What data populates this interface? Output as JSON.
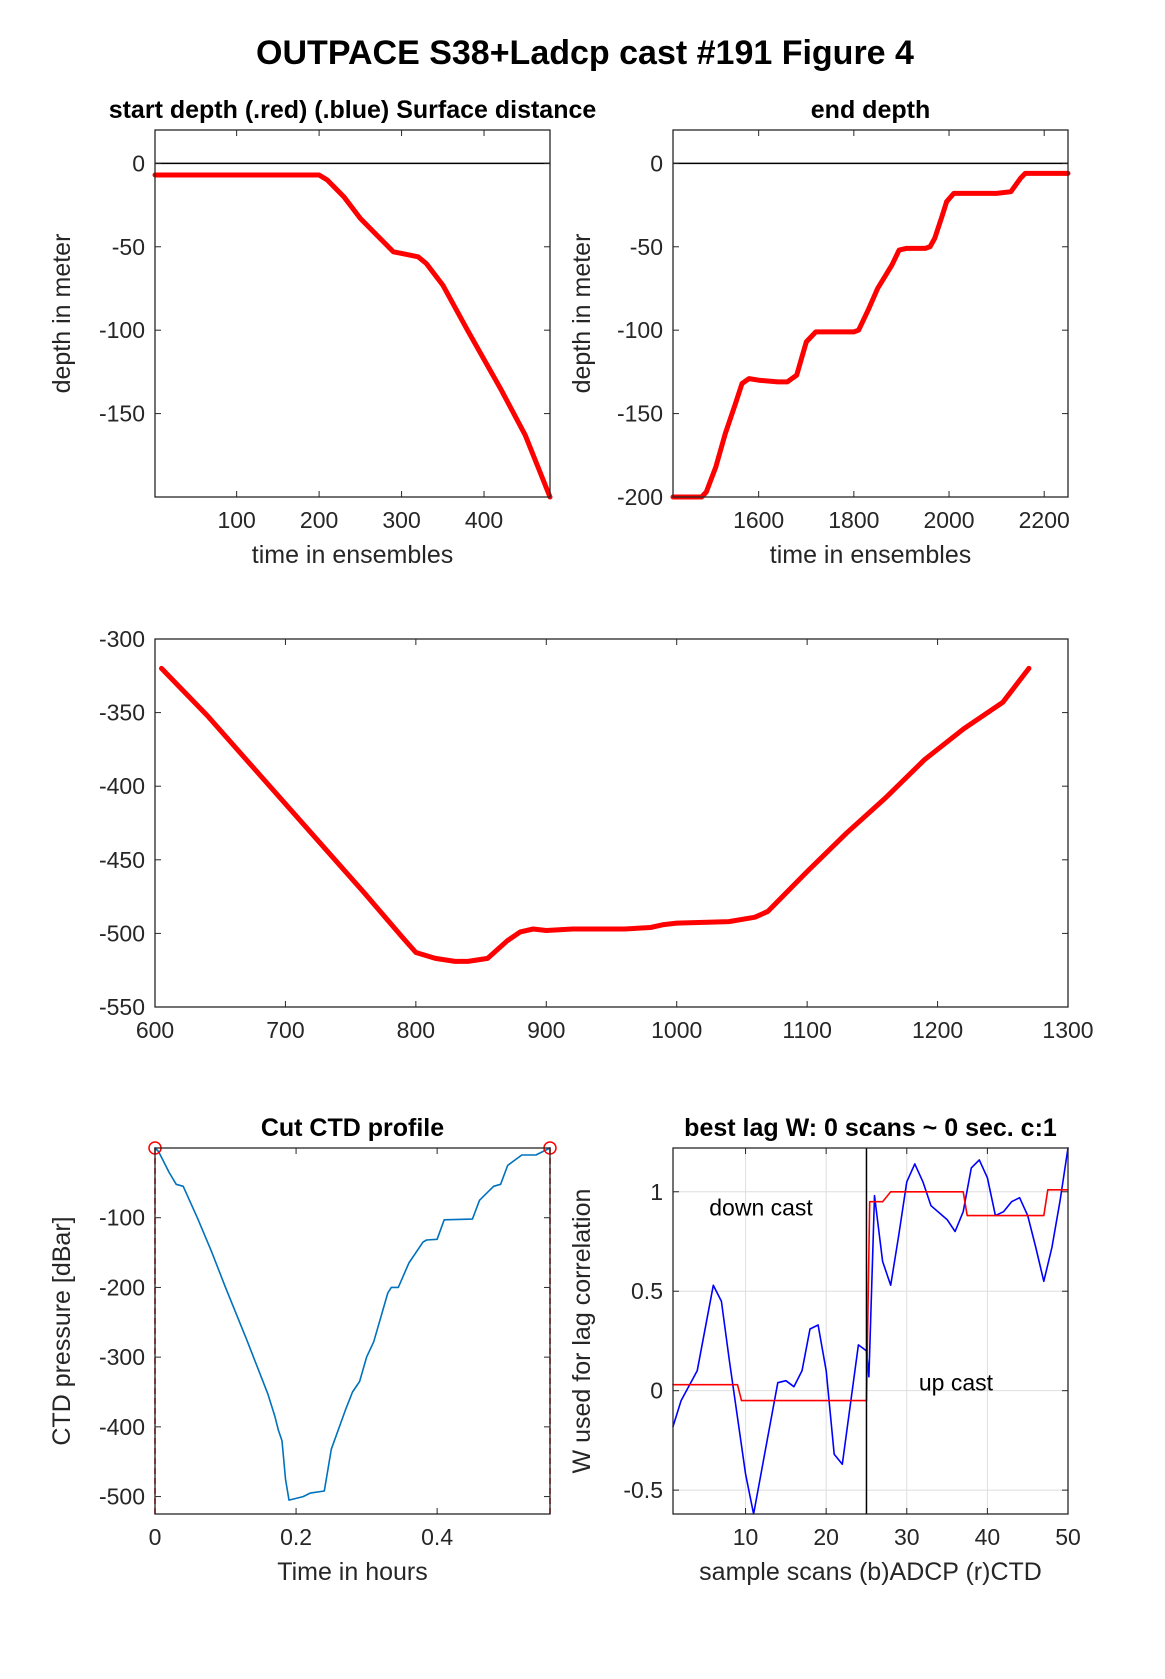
{
  "figure_title": "OUTPACE S38+Ladcp cast #191    Figure 4",
  "chart_data": [
    {
      "id": "start",
      "type": "line",
      "title": "start depth (.red) (.blue) Surface distance",
      "xlabel": "time in ensembles",
      "ylabel": "depth in meter",
      "xlim": [
        1,
        480
      ],
      "ylim": [
        -200,
        20
      ],
      "xticks": [
        100,
        200,
        300,
        400
      ],
      "yticks": [
        0,
        -50,
        -100,
        -150
      ],
      "grid": false,
      "reference_line": 0,
      "series": [
        {
          "color": "#ff0000",
          "x": [
            1,
            50,
            100,
            150,
            200,
            210,
            230,
            250,
            270,
            290,
            300,
            320,
            330,
            350,
            380,
            420,
            450,
            480
          ],
          "y": [
            -7,
            -7,
            -7,
            -7,
            -7,
            -10,
            -20,
            -33,
            -43,
            -53,
            -54,
            -56,
            -60,
            -73,
            -100,
            -135,
            -163,
            -200
          ]
        }
      ]
    },
    {
      "id": "end",
      "type": "line",
      "title": "end depth",
      "xlabel": "time in ensembles",
      "ylabel": "depth in meter",
      "xlim": [
        1420,
        2250
      ],
      "ylim": [
        -200,
        20
      ],
      "xticks": [
        1600,
        1800,
        2000,
        2200
      ],
      "yticks": [
        0,
        -50,
        -100,
        -150,
        -200
      ],
      "grid": false,
      "reference_line": 0,
      "series": [
        {
          "color": "#ff0000",
          "x": [
            1420,
            1480,
            1490,
            1510,
            1530,
            1550,
            1565,
            1580,
            1600,
            1640,
            1660,
            1680,
            1690,
            1700,
            1720,
            1800,
            1810,
            1830,
            1850,
            1880,
            1895,
            1910,
            1950,
            1960,
            1970,
            1985,
            1995,
            2010,
            2060,
            2100,
            2130,
            2150,
            2160,
            2200,
            2250
          ],
          "y": [
            -200,
            -200,
            -197,
            -182,
            -162,
            -145,
            -132,
            -129,
            -130,
            -131,
            -131,
            -127,
            -117,
            -107,
            -101,
            -101,
            -100,
            -88,
            -75,
            -61,
            -52,
            -51,
            -51,
            -50,
            -45,
            -32,
            -23,
            -18,
            -18,
            -18,
            -17,
            -9,
            -6,
            -6,
            -6
          ]
        }
      ]
    },
    {
      "id": "middle",
      "type": "line",
      "title": "",
      "xlabel": "",
      "ylabel": "",
      "xlim": [
        600,
        1300
      ],
      "ylim": [
        -550,
        -300
      ],
      "xticks": [
        600,
        700,
        800,
        900,
        1000,
        1100,
        1200,
        1300
      ],
      "yticks": [
        -300,
        -350,
        -400,
        -450,
        -500,
        -550
      ],
      "grid": false,
      "series": [
        {
          "color": "#ff0000",
          "x": [
            605,
            640,
            680,
            720,
            760,
            790,
            800,
            815,
            830,
            840,
            855,
            870,
            880,
            890,
            900,
            920,
            960,
            980,
            990,
            1000,
            1040,
            1060,
            1070,
            1100,
            1130,
            1160,
            1190,
            1220,
            1250,
            1270
          ],
          "y": [
            -320,
            -352,
            -392,
            -432,
            -472,
            -503,
            -513,
            -517,
            -519,
            -519,
            -517,
            -505,
            -499,
            -497,
            -498,
            -497,
            -497,
            -496,
            -494,
            -493,
            -492,
            -489,
            -485,
            -458,
            -432,
            -408,
            -382,
            -361,
            -343,
            -320
          ]
        }
      ]
    },
    {
      "id": "ctd",
      "type": "line",
      "title": "Cut CTD profile",
      "xlabel": "Time in hours",
      "ylabel": "CTD pressure [dBar]",
      "xlim": [
        0,
        0.56
      ],
      "ylim": [
        -525,
        0
      ],
      "xticks": [
        0,
        0.2,
        0.4
      ],
      "yticks": [
        -100,
        -200,
        -300,
        -400,
        -500
      ],
      "grid": false,
      "endpoint_markers": [
        0,
        0.56
      ],
      "series": [
        {
          "color": "#0072bd",
          "x": [
            0,
            0.005,
            0.01,
            0.02,
            0.03,
            0.04,
            0.06,
            0.08,
            0.1,
            0.13,
            0.16,
            0.17,
            0.175,
            0.18,
            0.185,
            0.19,
            0.21,
            0.22,
            0.24,
            0.25,
            0.27,
            0.28,
            0.29,
            0.3,
            0.31,
            0.33,
            0.335,
            0.345,
            0.36,
            0.38,
            0.385,
            0.4,
            0.41,
            0.45,
            0.46,
            0.48,
            0.49,
            0.5,
            0.52,
            0.54,
            0.56
          ],
          "y": [
            0,
            -5,
            -15,
            -35,
            -52,
            -55,
            -100,
            -148,
            -200,
            -275,
            -353,
            -385,
            -405,
            -420,
            -475,
            -505,
            -500,
            -495,
            -492,
            -432,
            -376,
            -350,
            -335,
            -300,
            -278,
            -208,
            -200,
            -200,
            -165,
            -135,
            -132,
            -131,
            -103,
            -102,
            -75,
            -55,
            -52,
            -25,
            -10,
            -10,
            0
          ]
        }
      ]
    },
    {
      "id": "lag",
      "type": "line",
      "title": "best lag W: 0 scans ~ 0 sec.  c:1",
      "xlabel": "sample scans (b)ADCP (r)CTD",
      "ylabel": "W used for lag correlation",
      "xlim": [
        1,
        50
      ],
      "ylim": [
        -0.62,
        1.22
      ],
      "xticks": [
        10,
        20,
        30,
        40,
        50
      ],
      "yticks": [
        1,
        0.5,
        0,
        -0.5
      ],
      "grid": true,
      "divider_x": 25,
      "annotations": [
        "down cast",
        "up cast"
      ],
      "series": [
        {
          "color": "#0000ff",
          "x": [
            1,
            2,
            4,
            6,
            7,
            8,
            10,
            11,
            13,
            14,
            15,
            16,
            17,
            18,
            19,
            20,
            21,
            22,
            24,
            25,
            25.3,
            26,
            27,
            28,
            29,
            30,
            31,
            32,
            33,
            35,
            36,
            37,
            38,
            39,
            40,
            41,
            42,
            43,
            44,
            45,
            46,
            47,
            48,
            49,
            50
          ],
          "y": [
            -0.18,
            -0.05,
            0.1,
            0.53,
            0.45,
            0.15,
            -0.42,
            -0.62,
            -0.18,
            0.04,
            0.05,
            0.02,
            0.1,
            0.31,
            0.33,
            0.1,
            -0.32,
            -0.37,
            0.23,
            0.2,
            0.07,
            0.98,
            0.65,
            0.53,
            0.78,
            1.05,
            1.14,
            1.05,
            0.93,
            0.86,
            0.8,
            0.9,
            1.12,
            1.16,
            1.07,
            0.88,
            0.9,
            0.95,
            0.97,
            0.88,
            0.72,
            0.55,
            0.72,
            0.95,
            1.22
          ]
        },
        {
          "color": "#ff0000",
          "x": [
            1,
            9,
            9.5,
            25,
            25.4,
            26,
            27,
            28,
            29,
            37,
            37.5,
            47,
            47.5,
            50
          ],
          "y": [
            0.03,
            0.03,
            -0.05,
            -0.05,
            0.95,
            0.95,
            0.95,
            1.0,
            1.0,
            1.0,
            0.88,
            0.88,
            1.01,
            1.01
          ]
        }
      ]
    }
  ]
}
